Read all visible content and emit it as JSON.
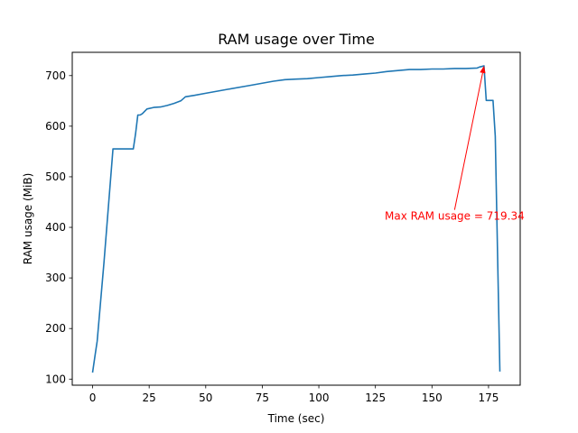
{
  "chart_data": {
    "type": "line",
    "title": "RAM usage over Time",
    "xlabel": "Time (sec)",
    "ylabel": "RAM usage (MiB)",
    "xlim": [
      -9,
      189
    ],
    "ylim": [
      88,
      746
    ],
    "xticks": [
      0,
      25,
      50,
      75,
      100,
      125,
      150,
      175
    ],
    "yticks": [
      100,
      200,
      300,
      400,
      500,
      600,
      700
    ],
    "grid": false,
    "legend": "none",
    "series": [
      {
        "color": "#1f77b4",
        "x": [
          0,
          1,
          2,
          5,
          9,
          12,
          15,
          18,
          19,
          20,
          21,
          22,
          24,
          27,
          30,
          33,
          36,
          39,
          41,
          45,
          50,
          60,
          70,
          80,
          85,
          90,
          95,
          100,
          105,
          110,
          115,
          120,
          125,
          130,
          135,
          140,
          145,
          150,
          155,
          160,
          165,
          170,
          171,
          172,
          173,
          174,
          177,
          178,
          179,
          180
        ],
        "y": [
          113,
          145,
          175,
          330,
          555,
          555,
          555,
          555,
          585,
          622,
          622,
          625,
          634,
          637,
          638,
          641,
          645,
          650,
          658,
          661,
          665,
          673,
          681,
          689,
          692,
          693,
          694,
          696,
          698,
          700,
          701,
          703,
          705,
          708,
          710,
          712,
          712,
          713,
          713,
          714,
          714,
          715,
          717,
          718,
          719.34,
          651,
          651,
          580,
          350,
          115
        ]
      }
    ],
    "annotations": [
      {
        "text": "Max RAM usage = 719.34",
        "color": "#ff0000",
        "xy": [
          173,
          719.34
        ],
        "xytext": [
          160,
          415
        ]
      }
    ]
  }
}
